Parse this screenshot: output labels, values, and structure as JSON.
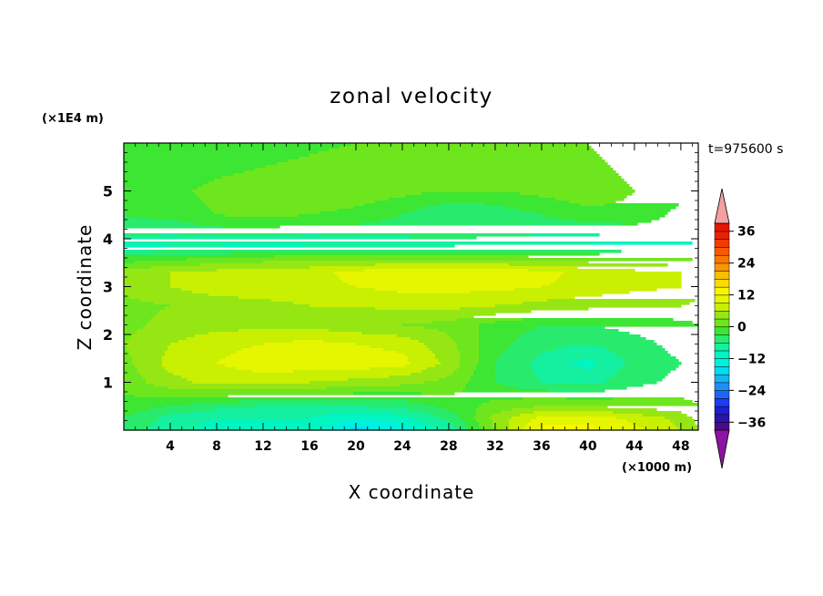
{
  "chart_data": {
    "type": "contour",
    "title": "zonal velocity",
    "xlabel": "X coordinate",
    "ylabel": "Z coordinate",
    "x_unit_label": "(×1000 m)",
    "y_unit_label": "(×1E4 m)",
    "time_label": "t=975600 s",
    "xlim": [
      0,
      49.5
    ],
    "ylim": [
      0,
      6
    ],
    "xticks": [
      4,
      8,
      12,
      16,
      20,
      24,
      28,
      32,
      36,
      40,
      44,
      48
    ],
    "yticks": [
      1,
      2,
      3,
      4,
      5
    ],
    "colorbar": {
      "levels": [
        -39,
        -36,
        -33,
        -30,
        -27,
        -24,
        -21,
        -18,
        -15,
        -12,
        -9,
        -6,
        -3,
        0,
        3,
        6,
        9,
        12,
        15,
        18,
        21,
        24,
        27,
        30,
        33,
        36,
        39
      ],
      "tick_labels": [
        "36",
        "24",
        "12",
        "0",
        "−12",
        "−24",
        "−36"
      ],
      "tick_values": [
        36,
        24,
        12,
        0,
        -12,
        -24,
        -36
      ],
      "colors": [
        "#4a0a8a",
        "#2b14a8",
        "#1e1ed0",
        "#1e3cf0",
        "#1e64f5",
        "#1e90f5",
        "#14b4f5",
        "#00dcf0",
        "#00f0e0",
        "#00f5c0",
        "#14f0a0",
        "#28eb6e",
        "#3ce632",
        "#6ee61e",
        "#96e614",
        "#c8f000",
        "#e6f500",
        "#faf500",
        "#fadc00",
        "#fabe00",
        "#fa9600",
        "#fa7800",
        "#f55a00",
        "#f03c00",
        "#eb2000",
        "#e61400"
      ],
      "under_color": "#8c14a0",
      "over_color": "#f5a0a0"
    },
    "field": {
      "x": [
        0,
        4,
        8,
        12,
        16,
        20,
        24,
        28,
        32,
        36,
        40,
        44,
        48,
        49.5
      ],
      "z": [
        0,
        0.25,
        0.5,
        1.0,
        1.4,
        1.8,
        2.2,
        2.6,
        3.0,
        3.3,
        3.6,
        3.85,
        4.1,
        4.5,
        5.0,
        5.5,
        6.0
      ],
      "u": [
        [
          -4,
          -8,
          -10,
          -10,
          -10,
          -16,
          -14,
          -8,
          3,
          13,
          13,
          10,
          6,
          3
        ],
        [
          -3,
          -7,
          -9,
          -9,
          -9,
          -12,
          -10,
          -5,
          4,
          10,
          11,
          8,
          5,
          2
        ],
        [
          -1,
          -3,
          -5,
          -6,
          -6,
          -6,
          -5,
          -2,
          1,
          3,
          3,
          2,
          1,
          0
        ],
        [
          1,
          5,
          7,
          7,
          6,
          5,
          4,
          2,
          -3,
          -6,
          -7,
          -4,
          -2,
          -1
        ],
        [
          2,
          7,
          9,
          11,
          11,
          11,
          10,
          5,
          -3,
          -7,
          -10,
          -5,
          -3,
          -2
        ],
        [
          3,
          6,
          8,
          9,
          10,
          9,
          8,
          4,
          -2,
          -5,
          -6,
          -4,
          -2,
          -1
        ],
        [
          2,
          4,
          5,
          5,
          5,
          4,
          3,
          2,
          -1,
          -3,
          -3,
          -2,
          -1,
          0
        ],
        [
          2,
          3,
          4,
          5,
          6,
          6,
          7,
          7,
          6,
          5,
          4,
          3,
          3,
          2
        ],
        [
          4,
          6,
          8,
          8,
          8,
          9,
          10,
          10,
          10,
          9,
          8,
          7,
          6,
          5
        ],
        [
          4,
          6,
          7,
          8,
          8,
          10,
          11,
          11,
          11,
          10,
          8,
          7,
          6,
          5
        ],
        [
          -2,
          -1,
          0,
          1,
          2,
          2,
          2,
          2,
          2,
          1,
          1,
          0,
          0,
          -1
        ],
        [
          -10,
          -9,
          -9,
          -10,
          -9,
          -9,
          -9,
          -9,
          -10,
          -10,
          -10,
          -11,
          -11,
          -10
        ],
        [
          -5,
          -6,
          -5,
          -5,
          -6,
          -5,
          -5,
          -4,
          -5,
          -6,
          -6,
          -5,
          -5,
          -5
        ],
        [
          -3,
          -2,
          0,
          1,
          0,
          -1,
          -3,
          -6,
          -5,
          -3,
          -1,
          -1,
          -4,
          -4
        ],
        [
          -2,
          -1,
          1,
          2,
          3,
          2,
          1,
          0,
          0,
          1,
          2,
          0,
          -2,
          -2
        ],
        [
          -3,
          -3,
          -1,
          0,
          1,
          2,
          1,
          0,
          1,
          2,
          1,
          -1,
          -3,
          -3
        ],
        [
          -3,
          -3,
          -2,
          -2,
          -1,
          0,
          1,
          1,
          1,
          1,
          0,
          -2,
          -3,
          -3
        ]
      ]
    }
  }
}
